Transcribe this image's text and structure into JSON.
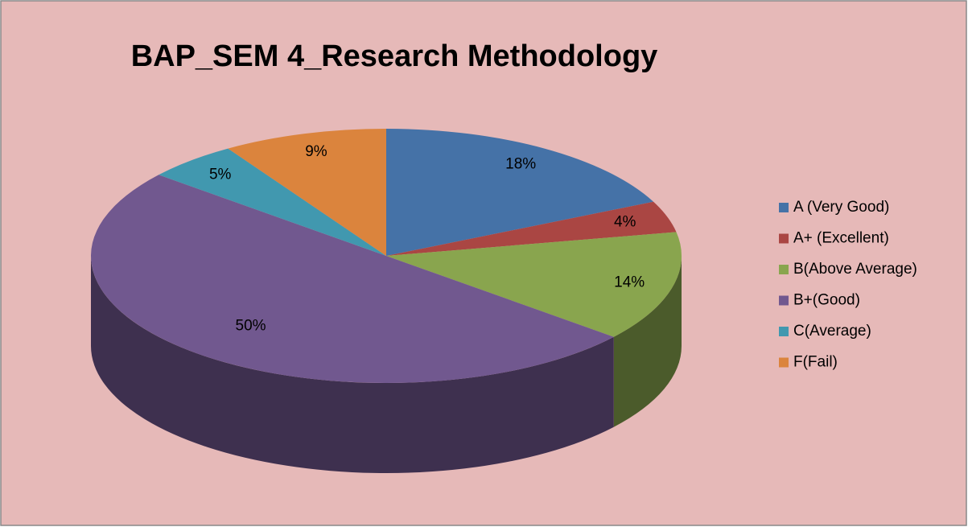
{
  "chart_data": {
    "type": "pie",
    "title": "BAP_SEM 4_Research Methodology",
    "categories": [
      "A (Very Good)",
      "A+ (Excellent)",
      "B(Above Average)",
      "B+(Good)",
      "C(Average)",
      "F(Fail)"
    ],
    "values": [
      18,
      4,
      14,
      50,
      5,
      9
    ],
    "value_labels": [
      "18%",
      "4%",
      "14%",
      "50%",
      "5%",
      "9%"
    ],
    "colors": [
      "#4572a7",
      "#aa4643",
      "#89a54e",
      "#71588f",
      "#4198af",
      "#db843d"
    ],
    "legend": "right"
  }
}
